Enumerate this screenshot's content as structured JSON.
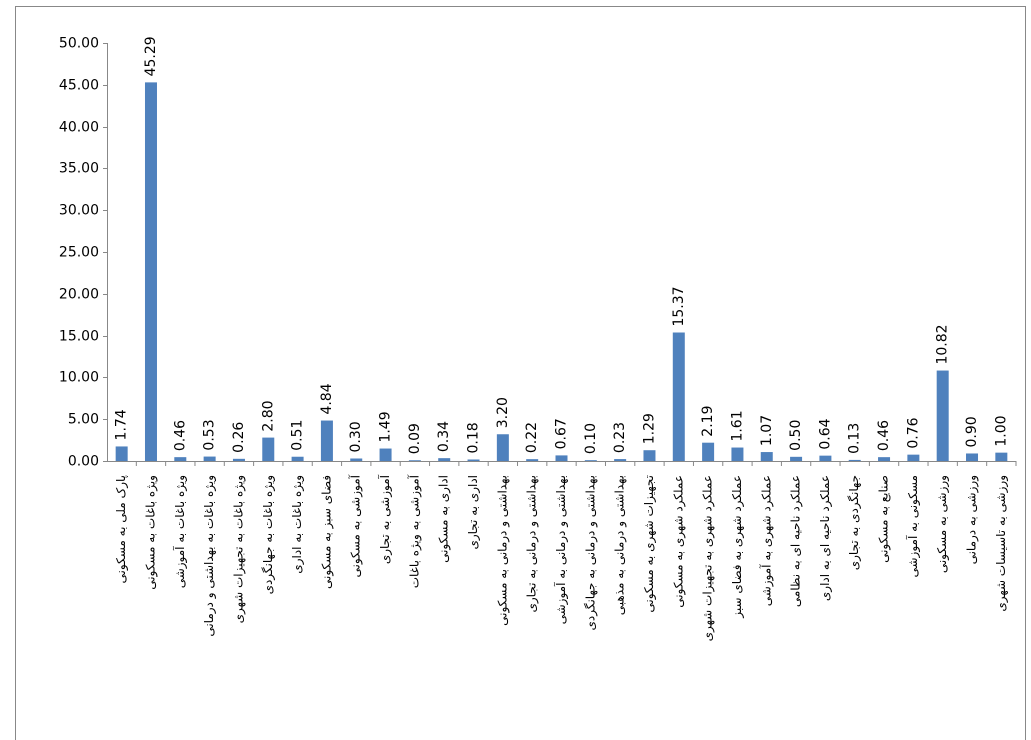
{
  "chart_data": {
    "type": "bar",
    "categories": [
      "پارک ملی به مسکونی",
      "ویژه باغات به مسکونی",
      "ویژه باغات به آموزشی",
      "ویژه باغات به بهداشتی و درمانی",
      "ویژه باغات به تجهیزات شهری",
      "ویژه باغات به جهانگردی",
      "ویژه باغات به اداری",
      "فضای سبز به مسکونی",
      "آموزشی به مسکونی",
      "آموزشی به تجاری",
      "آموزشی به ویژه باغات",
      "اداری به مسکونی",
      "اداری به تجاری",
      "بهداشتی و درمانی به مسکونی",
      "بهداشتی و درمانی به تجاری",
      "بهداشتی و درمانی به آموزشی",
      "بهداشتی و درمانی به جهانگردی",
      "بهداشتی و درمانی به مذهبی",
      "تجهیزات شهری به مسکونی",
      "عملکرد شهری به مسکونی",
      "عملکرد شهری به تجهیزات شهری",
      "عملکرد شهری به فضای سبز",
      "عملکرد شهری به آموزشی",
      "عملکرد ناحیه ای به نظامی",
      "عملکرد ناحیه ای به اداری",
      "جهانگردی به تجاری",
      "صنایع به مسکونی",
      "مسکونی به آموزشی",
      "ورزشی به مسکونی",
      "ورزشی به درمانی",
      "ورزشی به تاسیسات شهری"
    ],
    "values": [
      1.74,
      45.29,
      0.46,
      0.53,
      0.26,
      2.8,
      0.51,
      4.84,
      0.3,
      1.49,
      0.09,
      0.34,
      0.18,
      3.2,
      0.22,
      0.67,
      0.1,
      0.23,
      1.29,
      15.37,
      2.19,
      1.61,
      1.07,
      0.5,
      0.64,
      0.13,
      0.46,
      0.76,
      10.82,
      0.9,
      1.0
    ],
    "value_labels": [
      "1.74",
      "45.29",
      "0.46",
      "0.53",
      "0.26",
      "2.80",
      "0.51",
      "4.84",
      "0.30",
      "1.49",
      "0.09",
      "0.34",
      "0.18",
      "3.20",
      "0.22",
      "0.67",
      "0.10",
      "0.23",
      "1.29",
      "15.37",
      "2.19",
      "1.61",
      "1.07",
      "0.50",
      "0.64",
      "0.13",
      "0.46",
      "0.76",
      "10.82",
      "0.90",
      "1.00"
    ],
    "color": "#4f81bd",
    "ylim": [
      0,
      50
    ],
    "yticks": [
      {
        "value": 0,
        "label": "0.00"
      },
      {
        "value": 5,
        "label": "5.00"
      },
      {
        "value": 10,
        "label": "10.00"
      },
      {
        "value": 15,
        "label": "15.00"
      },
      {
        "value": 20,
        "label": "20.00"
      },
      {
        "value": 25,
        "label": "25.00"
      },
      {
        "value": 30,
        "label": "30.00"
      },
      {
        "value": 35,
        "label": "35.00"
      },
      {
        "value": 40,
        "label": "40.00"
      },
      {
        "value": 45,
        "label": "45.00"
      },
      {
        "value": 50,
        "label": "50.00"
      }
    ],
    "grid": false
  }
}
